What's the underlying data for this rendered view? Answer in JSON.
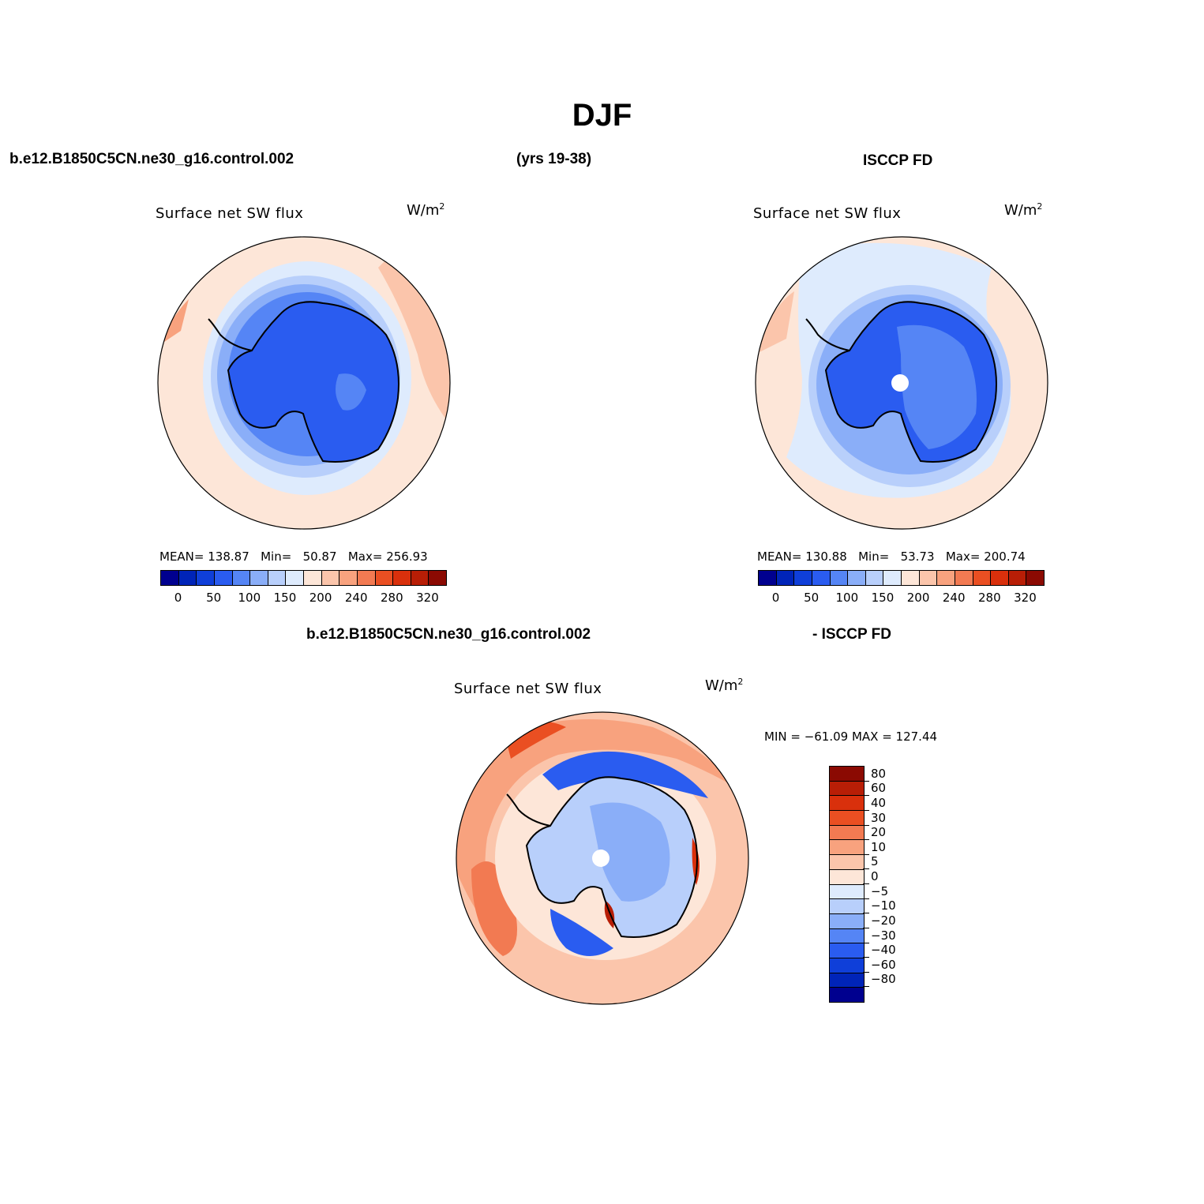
{
  "title": "DJF",
  "headers": {
    "case_name": "b.e12.B1850C5CN.ne30_g16.control.002",
    "years": "(yrs 19-38)",
    "obs_name": "ISCCP FD",
    "diff_case": "b.e12.B1850C5CN.ne30_g16.control.002",
    "diff_obs": "- ISCCP FD"
  },
  "panels": [
    {
      "id": "model",
      "variable": "Surface net SW flux",
      "units_base": "W/m",
      "units_exp": "2",
      "stats": {
        "mean_label": "MEAN=",
        "mean": "138.87",
        "min_label": "Min=",
        "min": "50.87",
        "max_label": "Max=",
        "max": "256.93"
      },
      "colorbar_ticks": [
        "0",
        "50",
        "100",
        "150",
        "200",
        "240",
        "280",
        "320"
      ],
      "colors": [
        "#00008f",
        "#0024b8",
        "#0f3fd9",
        "#2a5cf0",
        "#5585f5",
        "#8aaef8",
        "#b8cffb",
        "#deebfd",
        "#fde6d8",
        "#fbc5ab",
        "#f8a27e",
        "#f27a52",
        "#ea4f22",
        "#d9300c",
        "#b81e06",
        "#8b0a02"
      ]
    },
    {
      "id": "obs",
      "variable": "Surface net SW flux",
      "units_base": "W/m",
      "units_exp": "2",
      "stats": {
        "mean_label": "MEAN=",
        "mean": "130.88",
        "min_label": "Min=",
        "min": "53.73",
        "max_label": "Max=",
        "max": "200.74"
      },
      "colorbar_ticks": [
        "0",
        "50",
        "100",
        "150",
        "200",
        "240",
        "280",
        "320"
      ],
      "colors": [
        "#00008f",
        "#0024b8",
        "#0f3fd9",
        "#2a5cf0",
        "#5585f5",
        "#8aaef8",
        "#b8cffb",
        "#deebfd",
        "#fde6d8",
        "#fbc5ab",
        "#f8a27e",
        "#f27a52",
        "#ea4f22",
        "#d9300c",
        "#b81e06",
        "#8b0a02"
      ]
    },
    {
      "id": "diff",
      "variable": "Surface net SW flux",
      "units_base": "W/m",
      "units_exp": "2",
      "minmax": "MIN = −61.09  MAX = 127.44",
      "colorbar_ticks": [
        "80",
        "60",
        "40",
        "30",
        "20",
        "10",
        "5",
        "0",
        "−5",
        "−10",
        "−20",
        "−30",
        "−40",
        "−60",
        "−80"
      ],
      "colors": [
        "#8b0a02",
        "#b81e06",
        "#d9300c",
        "#ea4f22",
        "#f27a52",
        "#f8a27e",
        "#fbc5ab",
        "#fde6d8",
        "#deebfd",
        "#b8cffb",
        "#8aaef8",
        "#5585f5",
        "#2a5cf0",
        "#0f3fd9",
        "#0024b8",
        "#00008f"
      ]
    }
  ]
}
